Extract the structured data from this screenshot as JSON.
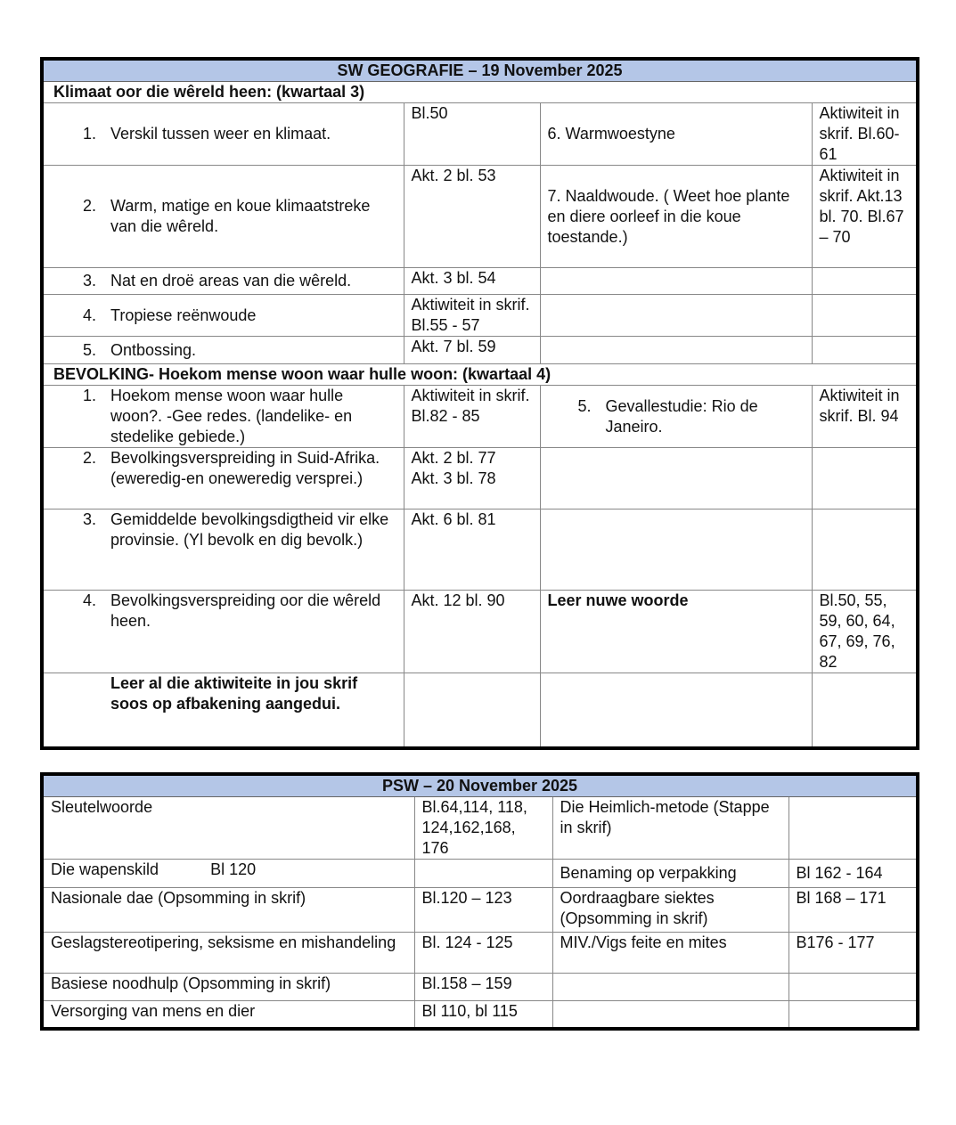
{
  "geo": {
    "title": "SW GEOGRAFIE – 19 November 2025",
    "section1": "Klimaat oor die wêreld heen: (kwartaal 3)",
    "rows1": [
      {
        "num": "1.",
        "text": "Verskil tussen weer en klimaat.",
        "ref": "Bl.50",
        "extra": "6. Warmwoestyne",
        "extra_ref": "Aktiwiteit in skrif. Bl.60-61"
      },
      {
        "num": "2.",
        "text": "Warm, matige en koue klimaatstreke van die wêreld.",
        "ref": "Akt. 2 bl. 53",
        "extra": "7. Naaldwoude. ( Weet hoe plante en diere oorleef in die koue toestande.)",
        "extra_ref": "Aktiwiteit in skrif. Akt.13 bl. 70. Bl.67 – 70"
      },
      {
        "num": "3.",
        "text": "Nat en droë areas van die wêreld.",
        "ref": "Akt. 3 bl. 54"
      },
      {
        "num": "4.",
        "text": "Tropiese reënwoude",
        "ref": "Aktiwiteit in skrif. Bl.55 - 57"
      },
      {
        "num": "5.",
        "text": "Ontbossing.",
        "ref": "Akt. 7 bl. 59"
      }
    ],
    "section2": "BEVOLKING- Hoekom mense woon waar hulle woon: (kwartaal 4)",
    "rows2": [
      {
        "num": "1.",
        "text": "Hoekom mense woon waar hulle woon?. -Gee redes. (landelike- en stedelike gebiede.)",
        "ref": "Aktiwiteit in skrif. Bl.82 - 85",
        "extra_num": "5.",
        "extra": "Gevallestudie: Rio de Janeiro.",
        "extra_ref": "Aktiwiteit in skrif. Bl. 94"
      },
      {
        "num": "2.",
        "text": "Bevolkingsverspreiding in Suid-Afrika. (eweredig-en oneweredig versprei.)",
        "ref": "Akt. 2 bl. 77",
        "ref2": "Akt. 3 bl. 78"
      },
      {
        "num": "3.",
        "text": "Gemiddelde bevolkingsdigtheid vir elke provinsie. (Yl bevolk en dig bevolk.)",
        "ref": "Akt. 6 bl. 81"
      },
      {
        "num": "4.",
        "text": "Bevolkingsverspreiding oor die wêreld heen.",
        "ref": "Akt. 12 bl. 90",
        "extra": "Leer nuwe woorde",
        "extra_ref": "Bl.50, 55, 59, 60, 64, 67, 69, 76, 82"
      }
    ],
    "note": "Leer al die aktiwiteite in jou skrif soos op afbakening aangedui."
  },
  "psw": {
    "title": "PSW – 20 November 2025",
    "rows": [
      {
        "topic": "Sleutelwoorde",
        "ref": "Bl.64,114, 118, 124,162,168, 176",
        "topic2": "Die Heimlich-metode (Stappe in skrif)",
        "ref2": ""
      },
      {
        "topic": "Die wapenskild",
        "topic_ref": "Bl 120",
        "ref": "",
        "topic2": "Benaming op verpakking",
        "ref2": "Bl 162 - 164"
      },
      {
        "topic": "Nasionale dae (Opsomming in skrif)",
        "ref": "Bl.120 – 123",
        "topic2": "Oordraagbare siektes (Opsomming in skrif)",
        "ref2": "Bl 168 – 171"
      },
      {
        "topic": "Geslagstereotipering, seksisme en mishandeling",
        "ref": "Bl. 124 - 125",
        "topic2": "MIV./Vigs feite en mites",
        "ref2": "B176 - 177"
      },
      {
        "topic": "Basiese noodhulp (Opsomming in skrif)",
        "ref": "Bl.158 – 159",
        "topic2": "",
        "ref2": ""
      },
      {
        "topic": "Versorging van mens en dier",
        "ref": "Bl 110, bl 115",
        "topic2": "",
        "ref2": ""
      }
    ]
  }
}
